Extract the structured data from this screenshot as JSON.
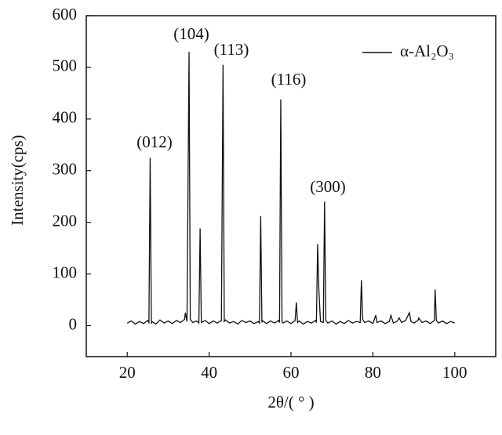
{
  "chart_data": {
    "type": "line",
    "x_label": "2θ/( ° )",
    "y_label": "Intensity(cps)",
    "x": [
      20,
      21,
      22,
      23,
      24,
      25,
      25.3,
      25.6,
      25.9,
      26,
      27,
      28,
      29,
      30,
      31,
      32,
      33,
      34,
      34.2,
      34.6,
      35.1,
      35.4,
      36,
      37,
      37.5,
      37.8,
      38.1,
      39,
      40,
      41,
      42,
      43,
      43.4,
      43.7,
      44,
      45,
      46,
      47,
      48,
      49,
      50,
      51,
      52,
      52.3,
      52.6,
      52.9,
      53,
      54,
      55,
      56,
      57,
      57.2,
      57.5,
      57.8,
      58,
      59,
      60,
      61,
      61.3,
      61.6,
      62,
      63,
      64,
      65,
      66,
      66.2,
      66.5,
      66.8,
      67.2,
      67.9,
      68.2,
      68.5,
      69,
      70,
      71,
      72,
      73,
      74,
      75,
      76,
      76.9,
      77.2,
      77.5,
      78,
      79,
      80,
      80.7,
      81,
      82,
      83,
      84,
      84.4,
      85,
      86,
      86.4,
      87,
      88,
      88.9,
      89.3,
      90,
      91,
      91.2,
      92,
      93,
      94,
      95,
      95.2,
      95.5,
      96,
      97,
      98,
      99,
      100
    ],
    "series": [
      {
        "name": "α-Al₂O₃",
        "color": "#111111",
        "values": [
          5,
          9,
          3,
          8,
          4,
          10,
          6,
          325,
          4,
          8,
          3,
          11,
          5,
          9,
          4,
          10,
          6,
          12,
          25,
          8,
          530,
          12,
          6,
          9,
          5,
          188,
          6,
          10,
          4,
          9,
          5,
          10,
          505,
          8,
          11,
          5,
          8,
          3,
          10,
          6,
          9,
          4,
          8,
          5,
          212,
          6,
          10,
          4,
          9,
          5,
          10,
          6,
          438,
          8,
          5,
          9,
          4,
          10,
          45,
          6,
          9,
          3,
          8,
          5,
          10,
          6,
          158,
          70,
          8,
          6,
          240,
          10,
          5,
          9,
          3,
          8,
          4,
          10,
          5,
          8,
          6,
          88,
          12,
          6,
          9,
          4,
          20,
          6,
          9,
          4,
          8,
          20,
          5,
          9,
          15,
          6,
          10,
          25,
          8,
          5,
          10,
          15,
          6,
          9,
          4,
          10,
          70,
          10,
          5,
          9,
          4,
          8,
          5
        ]
      }
    ],
    "annotations": [
      "(012)",
      "(104)",
      "(113)",
      "(116)",
      "(300)"
    ],
    "xlim": [
      10,
      110
    ],
    "ylim": [
      -60,
      600
    ],
    "xticks": [
      20,
      40,
      60,
      80,
      100
    ],
    "yticks": [
      0,
      100,
      200,
      300,
      400,
      500,
      600
    ],
    "legend": "upper right",
    "grid": false
  }
}
